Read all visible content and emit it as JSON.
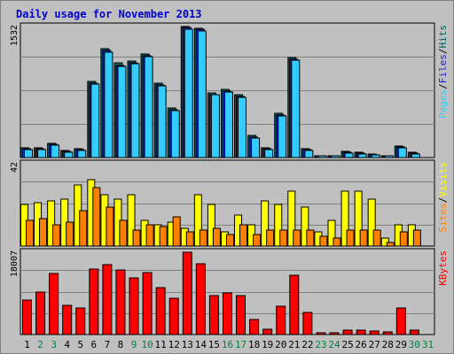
{
  "chart_data": {
    "type": "bar",
    "title": "Daily usage for November 2013",
    "x": [
      "1",
      "2",
      "3",
      "4",
      "5",
      "6",
      "7",
      "8",
      "9",
      "10",
      "11",
      "12",
      "13",
      "14",
      "15",
      "16",
      "17",
      "18",
      "19",
      "20",
      "21",
      "22",
      "23",
      "24",
      "25",
      "26",
      "27",
      "28",
      "29",
      "30",
      "31"
    ],
    "weekend_days": [
      "2",
      "3",
      "9",
      "10",
      "16",
      "17",
      "23",
      "24",
      "30",
      "31"
    ],
    "panels": [
      {
        "id": "hits",
        "axis_label": "1532",
        "ymax": 1532,
        "series": [
          {
            "name": "Hits",
            "color": "#006666",
            "values": [
              115,
              110,
              170,
              80,
              100,
              890,
              1270,
              1110,
              1130,
              1210,
              870,
              580,
              1532,
              1515,
              760,
              800,
              730,
              260,
              110,
              520,
              1170,
              100,
              20,
              25,
              70,
              60,
              40,
              20,
              130,
              60,
              0
            ]
          },
          {
            "name": "Files",
            "color": "#2222cc",
            "values": [
              100,
              100,
              160,
              70,
              90,
              870,
              1250,
              1080,
              1110,
              1190,
              850,
              560,
              1520,
              1500,
              740,
              780,
              710,
              240,
              100,
              500,
              1150,
              90,
              15,
              20,
              60,
              50,
              30,
              15,
              120,
              50,
              0
            ]
          },
          {
            "name": "Pages",
            "color": "#33ccff",
            "values": [
              90,
              90,
              150,
              65,
              85,
              860,
              1230,
              1070,
              1100,
              1180,
              840,
              550,
              1500,
              1485,
              730,
              770,
              700,
              230,
              95,
              490,
              1135,
              85,
              12,
              18,
              55,
              45,
              28,
              12,
              115,
              45,
              0
            ]
          }
        ]
      },
      {
        "id": "visits",
        "axis_label": "42",
        "ymax": 42,
        "series": [
          {
            "name": "Visits",
            "color": "#ffff00",
            "values": [
              21,
              22,
              23,
              24,
              31,
              34,
              26,
              24,
              26,
              13,
              11,
              12,
              9,
              26,
              21,
              7,
              16,
              11,
              23,
              21,
              28,
              20,
              7,
              13,
              28,
              28,
              24,
              4,
              11,
              11,
              0
            ]
          },
          {
            "name": "Sites",
            "color": "#ff8000",
            "values": [
              13,
              14,
              11,
              12,
              18,
              30,
              20,
              13,
              8,
              11,
              10,
              15,
              7,
              8,
              9,
              6,
              11,
              6,
              8,
              8,
              8,
              8,
              5,
              4,
              8,
              8,
              8,
              2,
              7,
              8,
              0
            ]
          }
        ]
      },
      {
        "id": "kbytes",
        "axis_label": "18007",
        "ymax": 18007,
        "series": [
          {
            "name": "KBytes",
            "color": "#ff0000",
            "values": [
              7600,
              9200,
              13400,
              6300,
              5900,
              14300,
              15200,
              14100,
              12300,
              13500,
              10200,
              8000,
              18007,
              15500,
              8500,
              9100,
              8500,
              3200,
              1200,
              6200,
              13000,
              4800,
              300,
              300,
              1000,
              900,
              800,
              500,
              5800,
              1000,
              0
            ]
          }
        ]
      }
    ],
    "legend_vertical": [
      {
        "panel": "hits",
        "items": [
          {
            "label": "Pages",
            "color": "#33ccff"
          },
          {
            "label": "Files",
            "color": "#2222cc"
          },
          {
            "label": "Hits",
            "color": "#006666"
          }
        ]
      },
      {
        "panel": "visits",
        "items": [
          {
            "label": "Sites",
            "color": "#ff8000"
          },
          {
            "label": "Visits",
            "color": "#ffff00"
          }
        ]
      },
      {
        "panel": "kbytes",
        "items": [
          {
            "label": "KBytes",
            "color": "#ff0000"
          }
        ]
      }
    ],
    "legend_separator": "/",
    "colors": {
      "title": "#0000cc",
      "weekday_label": "#000000",
      "weekend_label": "#008040",
      "background": "#c0c0c0",
      "panel_fill": "#c0c0c0",
      "gridline": "#808080"
    },
    "grid": true
  }
}
